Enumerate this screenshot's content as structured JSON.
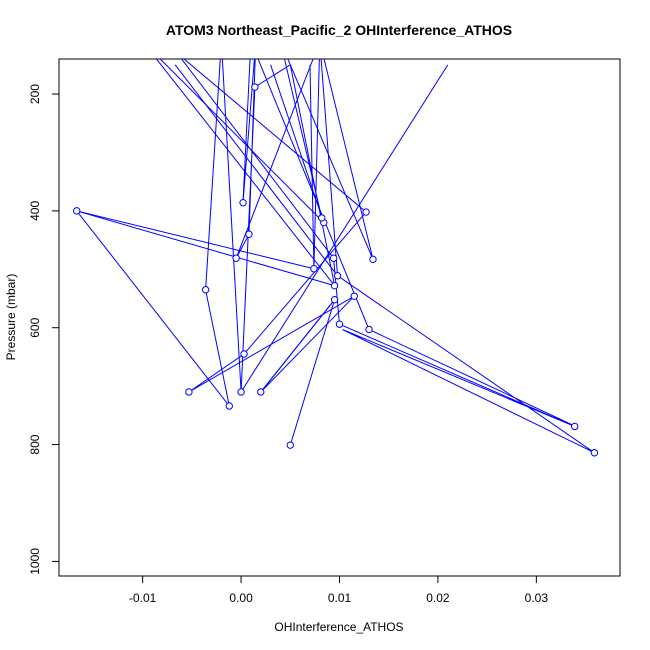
{
  "chart_data": {
    "type": "line",
    "title": "ATOM3 Northeast_Pacific_2 OHInterference_ATHOS",
    "xlabel": "OHInterference_ATHOS",
    "ylabel": "Pressure (mbar)",
    "xlim": [
      -0.0185,
      0.0385
    ],
    "ylim": [
      1025,
      140
    ],
    "y_reversed": true,
    "grid": false,
    "x_ticks": [
      -0.01,
      0.0,
      0.01,
      0.02,
      0.03
    ],
    "x_tick_labels": [
      "-0.01",
      "0.00",
      "0.01",
      "0.02",
      "0.03"
    ],
    "y_ticks": [
      200,
      400,
      600,
      800,
      1000
    ],
    "y_tick_labels": [
      "200",
      "400",
      "600",
      "800",
      "1000"
    ],
    "series_color": "#0000ff",
    "series": [
      {
        "marker": "open-circle",
        "points": [
          {
            "x": 0.005,
            "y": 801
          },
          {
            "x": 0.0095,
            "y": 552
          },
          {
            "x": 0.0115,
            "y": 546
          },
          {
            "x": 0.002,
            "y": 710
          },
          {
            "x": 0.0,
            "y": 710
          },
          {
            "x": 0.0003,
            "y": 645
          },
          {
            "x": 0.0127,
            "y": 402
          },
          {
            "x": -0.0053,
            "y": 710
          },
          {
            "x": 0.0094,
            "y": 481
          },
          {
            "x": 0.01,
            "y": 594
          },
          {
            "x": 0.0339,
            "y": 769
          },
          {
            "x": 0.0359,
            "y": 814
          },
          {
            "x": 0.013,
            "y": 603
          },
          {
            "x": 0.0098,
            "y": 511
          },
          {
            "x": 0.0074,
            "y": 499
          },
          {
            "x": -0.0012,
            "y": 734
          },
          {
            "x": -0.0036,
            "y": 535
          },
          {
            "x": 0.0014,
            "y": 188
          },
          {
            "x": 0.0002,
            "y": 386
          },
          {
            "x": -0.0167,
            "y": 400
          },
          {
            "x": 0.0095,
            "y": 528
          },
          {
            "x": 0.0084,
            "y": 420
          },
          {
            "x": 0.0082,
            "y": 412
          },
          {
            "x": 0.0134,
            "y": 483
          },
          {
            "x": -0.0005,
            "y": 481
          },
          {
            "x": 0.0008,
            "y": 440
          }
        ],
        "path_order": [
          {
            "x": 0.005,
            "y": 801
          },
          {
            "x": 0.0095,
            "y": 552
          },
          {
            "x": 0.002,
            "y": 710
          },
          {
            "x": 0.0115,
            "y": 546
          },
          {
            "x": -0.0053,
            "y": 710
          },
          {
            "x": 0.0003,
            "y": 645
          },
          {
            "x": 0.0127,
            "y": 402
          },
          {
            "x": -0.0065,
            "y": 130
          },
          {
            "x": 0.0094,
            "y": 481
          },
          {
            "x": 0.01,
            "y": 594
          },
          {
            "x": 0.0339,
            "y": 769
          },
          {
            "x": 0.0103,
            "y": 603
          },
          {
            "x": 0.0359,
            "y": 814
          },
          {
            "x": 0.0098,
            "y": 511
          },
          {
            "x": 0.008,
            "y": 110
          },
          {
            "x": 0.0074,
            "y": 499
          },
          {
            "x": -0.0167,
            "y": 400
          },
          {
            "x": -0.0012,
            "y": 734
          },
          {
            "x": -0.0036,
            "y": 535
          },
          {
            "x": -0.002,
            "y": 110
          },
          {
            "x": 0.0,
            "y": 710
          },
          {
            "x": 0.0014,
            "y": 188
          },
          {
            "x": 0.005,
            "y": 150
          },
          {
            "x": 0.0095,
            "y": 528
          },
          {
            "x": -0.01,
            "y": 110
          },
          {
            "x": 0.0084,
            "y": 420
          },
          {
            "x": 0.0082,
            "y": 412
          },
          {
            "x": 0.004,
            "y": 110
          },
          {
            "x": 0.0134,
            "y": 483
          },
          {
            "x": 0.008,
            "y": 110
          },
          {
            "x": -0.0005,
            "y": 481
          },
          {
            "x": 0.0008,
            "y": 440
          },
          {
            "x": 0.0015,
            "y": 110
          },
          {
            "x": 0.0002,
            "y": 386
          },
          {
            "x": 0.001,
            "y": 110
          },
          {
            "x": 0.013,
            "y": 603
          },
          {
            "x": 0.034,
            "y": 769
          }
        ],
        "extra_segments": [
          [
            {
              "x": 0.0,
              "y": 710
            },
            {
              "x": 0.021,
              "y": 150
            }
          ],
          [
            {
              "x": 0.002,
              "y": 710
            },
            {
              "x": 0.0095,
              "y": 552
            }
          ],
          [
            {
              "x": -0.0167,
              "y": 400
            },
            {
              "x": 0.0095,
              "y": 528
            }
          ],
          [
            {
              "x": -0.0067,
              "y": 150
            },
            {
              "x": 0.0098,
              "y": 511
            }
          ],
          [
            {
              "x": 0.003,
              "y": 150
            },
            {
              "x": 0.0084,
              "y": 420
            }
          ],
          [
            {
              "x": 0.007,
              "y": 150
            },
            {
              "x": 0.0074,
              "y": 499
            }
          ]
        ]
      }
    ]
  }
}
